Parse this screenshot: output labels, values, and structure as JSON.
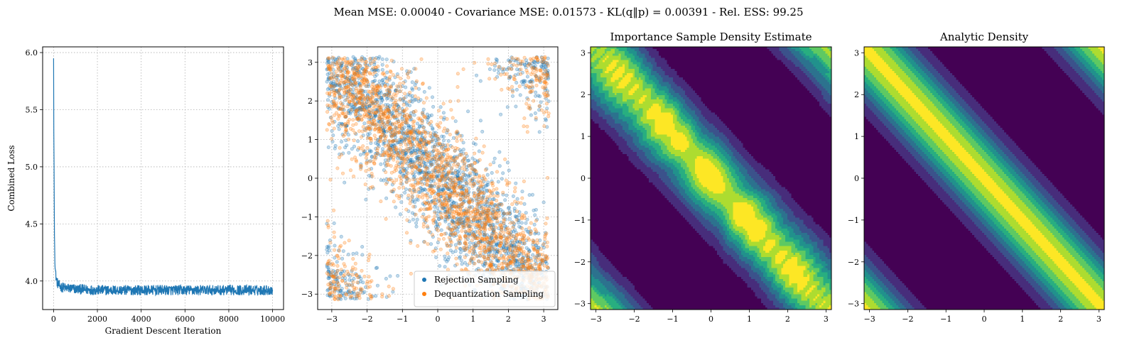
{
  "suptitle": "Mean MSE: 0.00040 - Covariance MSE: 0.01573 - KL(q‖p) = 0.00391 - Rel. ESS: 99.25",
  "chart_data": [
    {
      "type": "line",
      "title": "",
      "xlabel": "Gradient Descent Iteration",
      "ylabel": "Combined Loss",
      "xlim": [
        -500,
        10500
      ],
      "ylim": [
        3.75,
        6.05
      ],
      "xticks": [
        0,
        2000,
        4000,
        6000,
        8000,
        10000
      ],
      "yticks": [
        4.0,
        4.5,
        5.0,
        5.5,
        6.0
      ],
      "grid": true,
      "color": "#1f77b4",
      "series": [
        {
          "x": [
            0,
            10,
            20,
            30,
            40,
            50,
            60,
            80,
            100,
            150,
            200,
            300,
            500,
            1000,
            2000,
            4000,
            6000,
            8000,
            10000
          ],
          "y": [
            5.95,
            5.3,
            5.05,
            4.7,
            4.4,
            4.3,
            4.2,
            4.1,
            4.05,
            4.0,
            3.97,
            3.95,
            3.94,
            3.93,
            3.92,
            3.92,
            3.92,
            3.92,
            3.92
          ]
        }
      ]
    },
    {
      "type": "scatter",
      "title": "",
      "xlabel": "",
      "ylabel": "",
      "xlim": [
        -3.4,
        3.4
      ],
      "ylim": [
        -3.4,
        3.4
      ],
      "xticks": [
        -3,
        -2,
        -1,
        0,
        1,
        2,
        3
      ],
      "yticks": [
        -3,
        -2,
        -1,
        0,
        1,
        2,
        3
      ],
      "grid": true,
      "support": [
        -3.14159,
        3.14159
      ],
      "distribution": "wrapped band along y = -x",
      "legend_position": "lower-right",
      "series": [
        {
          "name": "Rejection Sampling",
          "color": "#1f77b4"
        },
        {
          "name": "Dequantization Sampling",
          "color": "#ff7f0e"
        }
      ]
    },
    {
      "type": "heatmap",
      "title": "Importance Sample Density Estimate",
      "xlabel": "",
      "ylabel": "",
      "xlim": [
        -3.14159,
        3.14159
      ],
      "ylim": [
        -3.14159,
        3.14159
      ],
      "xticks": [
        -3,
        -2,
        -1,
        0,
        1,
        2,
        3
      ],
      "yticks": [
        -3,
        -2,
        -1,
        0,
        1,
        2,
        3
      ],
      "colormap": [
        "#440154",
        "#472d7b",
        "#3b528b",
        "#2c728e",
        "#21918c",
        "#28ae80",
        "#5ec962",
        "#addc30",
        "#fde725"
      ],
      "band_direction": "y = -x, wrapped"
    },
    {
      "type": "heatmap",
      "title": "Analytic Density",
      "xlabel": "",
      "ylabel": "",
      "xlim": [
        -3.14159,
        3.14159
      ],
      "ylim": [
        -3.14159,
        3.14159
      ],
      "xticks": [
        -3,
        -2,
        -1,
        0,
        1,
        2,
        3
      ],
      "yticks": [
        -3,
        -2,
        -1,
        0,
        1,
        2,
        3
      ],
      "colormap": [
        "#440154",
        "#472d7b",
        "#3b528b",
        "#2c728e",
        "#21918c",
        "#28ae80",
        "#5ec962",
        "#addc30",
        "#fde725"
      ],
      "band_direction": "y = -x, wrapped"
    }
  ]
}
